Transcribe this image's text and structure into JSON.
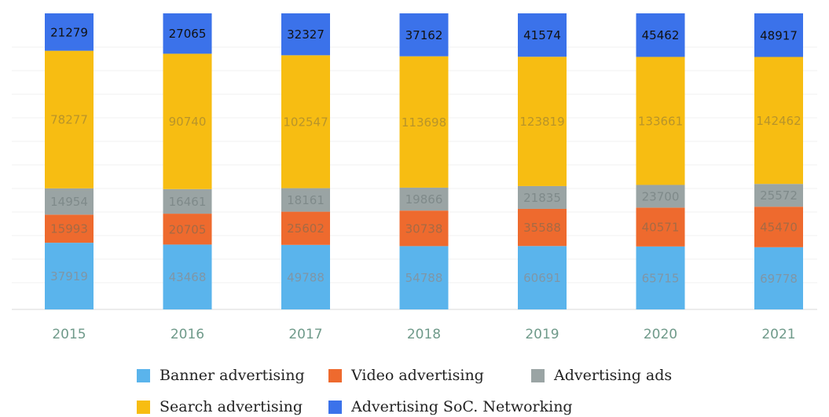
{
  "chart_data": {
    "type": "bar",
    "stacked": true,
    "categories": [
      "2015",
      "2016",
      "2017",
      "2018",
      "2019",
      "2020",
      "2021"
    ],
    "series": [
      {
        "name": "Banner advertising",
        "color": "#5ab4ec",
        "values": [
          37919,
          43468,
          49788,
          54788,
          60691,
          65715,
          69778
        ]
      },
      {
        "name": "Video advertising",
        "color": "#ee6a2e",
        "values": [
          15993,
          20705,
          25602,
          30738,
          35588,
          40571,
          45470
        ]
      },
      {
        "name": "Advertising ads",
        "color": "#9aa4a4",
        "values": [
          14954,
          16461,
          18161,
          19866,
          21835,
          23700,
          25572
        ]
      },
      {
        "name": "Search advertising",
        "color": "#f7bd12",
        "values": [
          78277,
          90740,
          102547,
          113698,
          123819,
          133661,
          142462
        ]
      },
      {
        "name": "Advertising SoC. Networking",
        "color": "#3b72ea",
        "values": [
          21279,
          27065,
          32327,
          37162,
          41574,
          45462,
          48917
        ]
      }
    ],
    "grid": true,
    "legend_position": "bottom",
    "title": "",
    "xlabel": "",
    "ylabel": ""
  },
  "legend": {
    "items": [
      {
        "label": "Banner advertising",
        "color": "#5ab4ec"
      },
      {
        "label": "Video advertising",
        "color": "#ee6a2e"
      },
      {
        "label": "Advertising ads",
        "color": "#9aa4a4"
      },
      {
        "label": "Search advertising",
        "color": "#f7bd12"
      },
      {
        "label": "Advertising SoC. Networking",
        "color": "#3b72ea"
      }
    ]
  }
}
